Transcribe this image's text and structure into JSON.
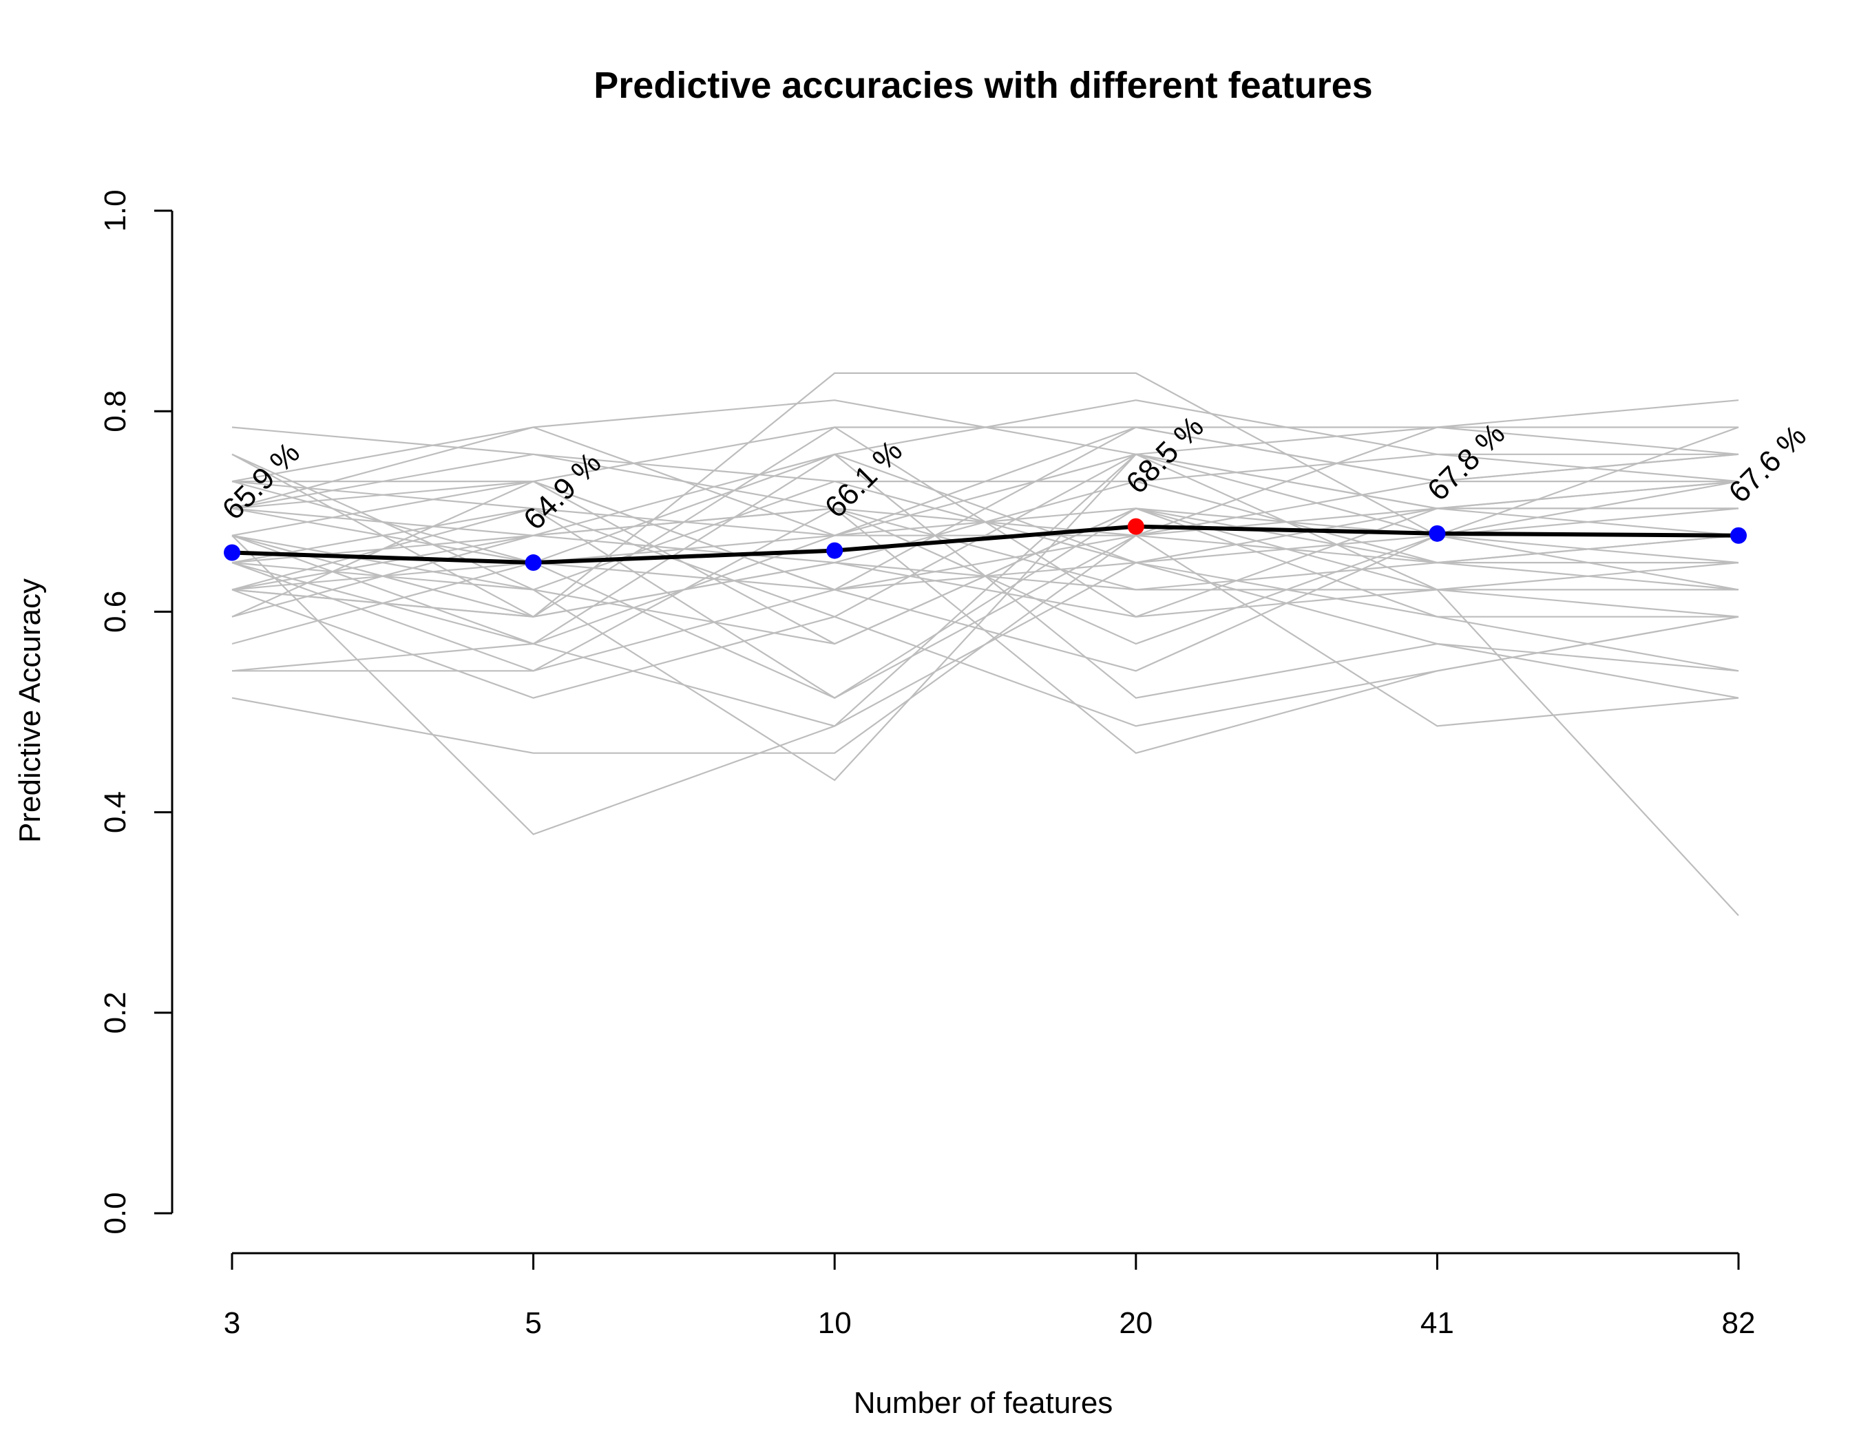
{
  "chart_data": {
    "type": "line",
    "title": "Predictive accuracies with different features",
    "xlabel": "Number of features",
    "ylabel": "Predictive Accuracy",
    "categories": [
      "3",
      "5",
      "10",
      "20",
      "41",
      "82"
    ],
    "ylim": [
      0,
      1
    ],
    "yticks": [
      "0.0",
      "0.2",
      "0.4",
      "0.6",
      "0.8",
      "1.0"
    ],
    "grid": false,
    "colors": {
      "background_lines": "#bdbdbd",
      "mean_line": "#000000",
      "point": "#0000ff",
      "best_point": "#ff0000"
    },
    "mean_series": {
      "values": [
        0.659,
        0.649,
        0.661,
        0.685,
        0.678,
        0.676
      ],
      "labels": [
        "65.9 %",
        "64.9 %",
        "66.1 %",
        "68.5 %",
        "67.8 %",
        "67.6 %"
      ],
      "best_index": 3
    },
    "background_series": [
      [
        0.784,
        0.757,
        0.703,
        0.676,
        0.784,
        0.811
      ],
      [
        0.757,
        0.595,
        0.838,
        0.838,
        0.676,
        0.784
      ],
      [
        0.73,
        0.784,
        0.811,
        0.757,
        0.784,
        0.757
      ],
      [
        0.73,
        0.73,
        0.784,
        0.784,
        0.784,
        0.784
      ],
      [
        0.703,
        0.676,
        0.757,
        0.811,
        0.757,
        0.73
      ],
      [
        0.703,
        0.784,
        0.676,
        0.757,
        0.703,
        0.703
      ],
      [
        0.676,
        0.73,
        0.622,
        0.784,
        0.73,
        0.757
      ],
      [
        0.676,
        0.622,
        0.73,
        0.649,
        0.703,
        0.703
      ],
      [
        0.649,
        0.703,
        0.595,
        0.757,
        0.676,
        0.73
      ],
      [
        0.649,
        0.568,
        0.676,
        0.703,
        0.649,
        0.676
      ],
      [
        0.622,
        0.676,
        0.649,
        0.622,
        0.622,
        0.649
      ],
      [
        0.622,
        0.595,
        0.784,
        0.595,
        0.622,
        0.622
      ],
      [
        0.595,
        0.73,
        0.568,
        0.703,
        0.595,
        0.595
      ],
      [
        0.568,
        0.649,
        0.514,
        0.676,
        0.649,
        0.676
      ],
      [
        0.541,
        0.541,
        0.622,
        0.541,
        0.676,
        0.622
      ],
      [
        0.541,
        0.568,
        0.486,
        0.649,
        0.568,
        0.541
      ],
      [
        0.514,
        0.459,
        0.459,
        0.676,
        0.486,
        0.514
      ],
      [
        0.757,
        0.622,
        0.432,
        0.757,
        0.703,
        0.73
      ],
      [
        0.676,
        0.378,
        0.486,
        0.757,
        0.622,
        0.297
      ],
      [
        0.622,
        0.514,
        0.595,
        0.486,
        0.541,
        0.595
      ],
      [
        0.649,
        0.541,
        0.703,
        0.459,
        0.541,
        0.595
      ],
      [
        0.703,
        0.649,
        0.757,
        0.514,
        0.568,
        0.514
      ],
      [
        0.73,
        0.703,
        0.514,
        0.703,
        0.676,
        0.676
      ],
      [
        0.649,
        0.676,
        0.703,
        0.622,
        0.649,
        0.649
      ],
      [
        0.622,
        0.703,
        0.676,
        0.676,
        0.73,
        0.757
      ],
      [
        0.676,
        0.595,
        0.649,
        0.595,
        0.703,
        0.73
      ],
      [
        0.703,
        0.757,
        0.73,
        0.73,
        0.757,
        0.757
      ],
      [
        0.622,
        0.649,
        0.622,
        0.649,
        0.676,
        0.703
      ],
      [
        0.649,
        0.622,
        0.568,
        0.703,
        0.622,
        0.595
      ],
      [
        0.676,
        0.568,
        0.757,
        0.649,
        0.595,
        0.541
      ],
      [
        0.595,
        0.676,
        0.703,
        0.568,
        0.676,
        0.649
      ],
      [
        0.73,
        0.649,
        0.676,
        0.784,
        0.73,
        0.73
      ],
      [
        0.622,
        0.595,
        0.649,
        0.73,
        0.649,
        0.622
      ],
      [
        0.703,
        0.73,
        0.622,
        0.676,
        0.703,
        0.676
      ]
    ]
  }
}
